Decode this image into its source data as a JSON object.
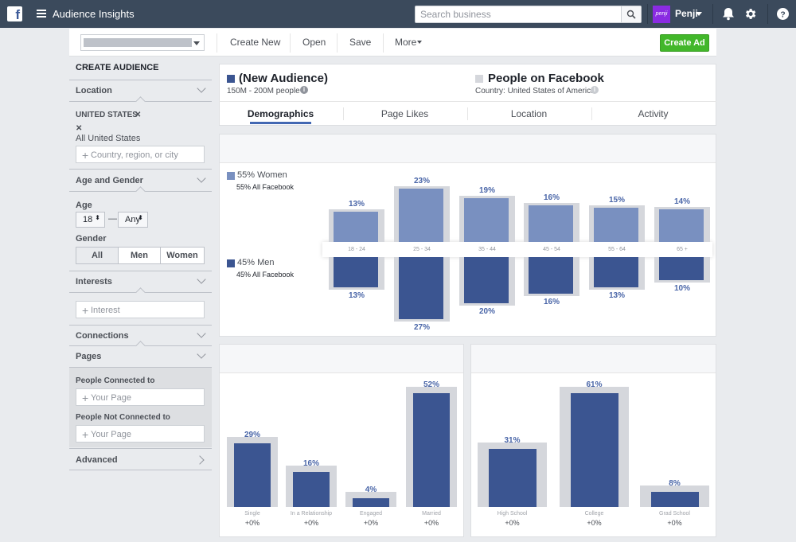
{
  "app": {
    "logo": "f",
    "title": "Audience Insights"
  },
  "search": {
    "placeholder": "Search business"
  },
  "user": {
    "avatar_text": "penji",
    "name": "Penji"
  },
  "toolbar": {
    "create_new": "Create New",
    "open": "Open",
    "save": "Save",
    "more": "More",
    "create_ad": "Create Ad"
  },
  "sidebar": {
    "header": "CREATE AUDIENCE",
    "location": {
      "label": "Location",
      "country": "UNITED STATES",
      "remove": "✕",
      "sub": "All United States",
      "placeholder": "Country, region, or city"
    },
    "age_gender": {
      "label": "Age and Gender",
      "age_label": "Age",
      "age_from": "18",
      "dash": "—",
      "age_to": "Any",
      "gender_label": "Gender",
      "gender_options": [
        "All",
        "Men",
        "Women"
      ]
    },
    "interests": {
      "label": "Interests",
      "placeholder": "Interest"
    },
    "connections": {
      "label": "Connections"
    },
    "pages": {
      "label": "Pages",
      "connected_label": "People Connected to",
      "connected_placeholder": "Your Page",
      "not_connected_label": "People Not Connected to",
      "not_connected_placeholder": "Your Page"
    },
    "advanced": {
      "label": "Advanced"
    }
  },
  "audience": {
    "left": {
      "title": "(New Audience)",
      "sub": "150M - 200M people",
      "color": "#3b5591"
    },
    "right": {
      "title": "People on Facebook",
      "sub": "Country: United States of America",
      "color": "#d5d7dc"
    }
  },
  "tabs": [
    "Demographics",
    "Page Likes",
    "Location",
    "Activity"
  ],
  "demographics": {
    "women_legend": "55% Women",
    "women_sub": "55% All Facebook",
    "men_legend": "45% Men",
    "men_sub": "45% All Facebook"
  },
  "chart_data": [
    {
      "type": "bar",
      "categories": [
        "18 - 24",
        "25 - 34",
        "35 - 44",
        "45 - 54",
        "55 - 64",
        "65 +"
      ],
      "series": [
        {
          "name": "55% Women",
          "values": [
            13,
            23,
            19,
            16,
            15,
            14
          ],
          "labels": [
            "13%",
            "23%",
            "19%",
            "16%",
            "15%",
            "14%"
          ],
          "color": "#7990c0"
        },
        {
          "name": "45% Men",
          "values": [
            13,
            27,
            20,
            16,
            13,
            10
          ],
          "labels": [
            "13%",
            "27%",
            "20%",
            "16%",
            "13%",
            "10%"
          ],
          "color": "#3b5591"
        }
      ]
    },
    {
      "type": "bar",
      "categories": [
        "Single",
        "In a Relationship",
        "Engaged",
        "Married"
      ],
      "values": [
        29,
        16,
        4,
        52
      ],
      "labels": [
        "29%",
        "16%",
        "4%",
        "52%"
      ],
      "deltas": [
        "+0%",
        "+0%",
        "+0%",
        "+0%"
      ],
      "color": "#3b5591"
    },
    {
      "type": "bar",
      "categories": [
        "High School",
        "College",
        "Grad School"
      ],
      "values": [
        31,
        61,
        8
      ],
      "labels": [
        "31%",
        "61%",
        "8%"
      ],
      "deltas": [
        "+0%",
        "+0%",
        "+0%"
      ],
      "color": "#3b5591"
    }
  ]
}
